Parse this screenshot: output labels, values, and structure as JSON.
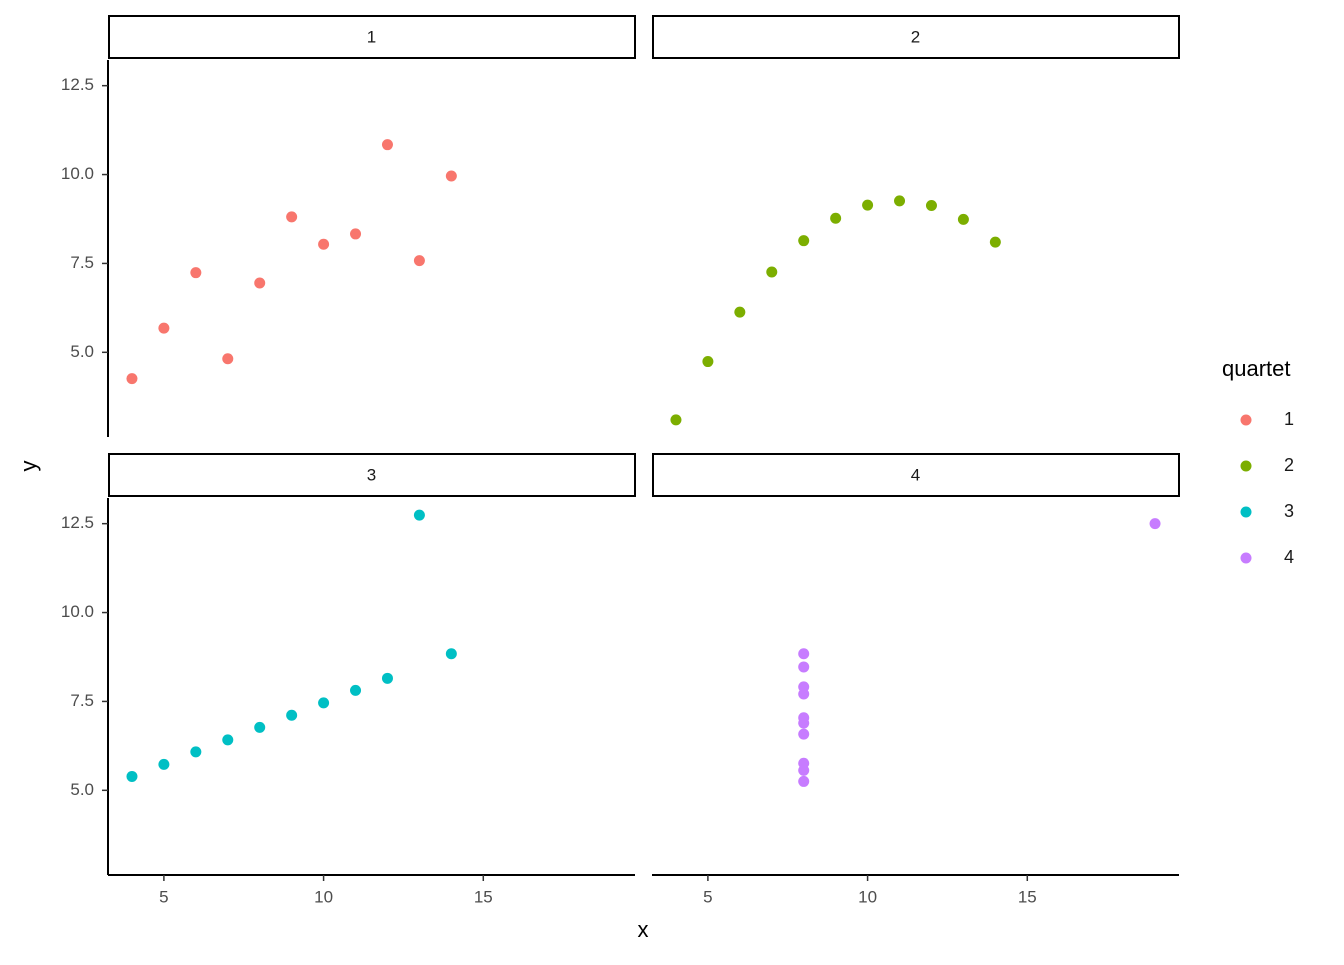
{
  "chart_data": {
    "type": "scatter",
    "x_label": "x",
    "y_label": "y",
    "legend_title": "quartet",
    "xlim": [
      3.25,
      19.75
    ],
    "ylim": [
      2.618,
      13.222
    ],
    "xticks": [
      5,
      10,
      15
    ],
    "yticks": [
      {
        "value": 5,
        "label": "5.0"
      },
      7.5,
      {
        "value": 10,
        "label": "10.0"
      },
      12.5
    ],
    "series": [
      {
        "name": "1",
        "color": "#F8766D",
        "x": [
          10,
          8,
          13,
          9,
          11,
          14,
          6,
          4,
          12,
          7,
          5
        ],
        "y": [
          8.04,
          6.95,
          7.58,
          8.81,
          8.33,
          9.96,
          7.24,
          4.26,
          10.84,
          4.82,
          5.68
        ]
      },
      {
        "name": "2",
        "color": "#7CAE00",
        "x": [
          10,
          8,
          13,
          9,
          11,
          14,
          6,
          4,
          12,
          7,
          5
        ],
        "y": [
          9.14,
          8.14,
          8.74,
          8.77,
          9.26,
          8.1,
          6.13,
          3.1,
          9.13,
          7.26,
          4.74
        ]
      },
      {
        "name": "3",
        "color": "#00BFC4",
        "x": [
          10,
          8,
          13,
          9,
          11,
          14,
          6,
          4,
          12,
          7,
          5
        ],
        "y": [
          7.46,
          6.77,
          12.74,
          7.11,
          7.81,
          8.84,
          6.08,
          5.39,
          8.15,
          6.42,
          5.73
        ]
      },
      {
        "name": "4",
        "color": "#C77CFF",
        "x": [
          8,
          8,
          8,
          8,
          8,
          8,
          8,
          19,
          8,
          8,
          8
        ],
        "y": [
          6.58,
          5.76,
          7.71,
          8.84,
          8.47,
          7.04,
          5.25,
          12.5,
          5.56,
          7.91,
          6.89
        ]
      }
    ]
  }
}
